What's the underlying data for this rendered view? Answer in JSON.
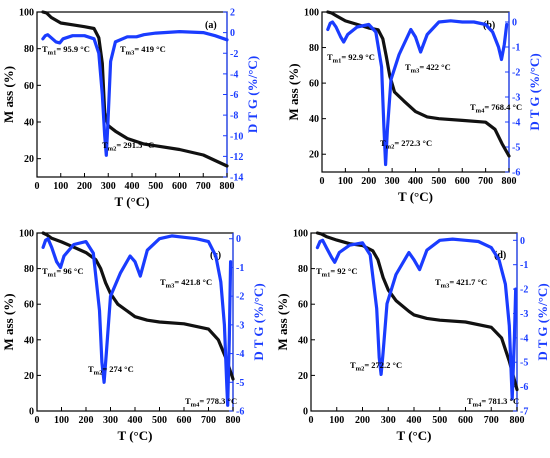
{
  "colors": {
    "mass": "#111111",
    "dtg": "#1a3cff",
    "axis_right": "#1a3cff"
  },
  "chart_data": [
    {
      "type": "line",
      "panel_label": "(a)",
      "xlabel": "T (°C)",
      "ylabel": "M ass (%)",
      "y2label": "D T G (%/°C)",
      "xlim": [
        0,
        800
      ],
      "ylim": [
        10,
        100
      ],
      "y2lim": [
        -14,
        2
      ],
      "xticks": [
        0,
        100,
        200,
        300,
        400,
        500,
        600,
        700,
        800
      ],
      "yticks": [
        20,
        40,
        60,
        80,
        100
      ],
      "y2ticks": [
        -14,
        -12,
        -10,
        -8,
        -6,
        -4,
        -2,
        0,
        2
      ],
      "series": [
        {
          "axis": "left",
          "x": [
            25,
            40,
            60,
            100,
            150,
            200,
            240,
            260,
            275,
            285,
            300,
            330,
            380,
            450,
            500,
            600,
            700,
            750,
            800
          ],
          "y": [
            100,
            99.5,
            97,
            94,
            93,
            92,
            91,
            86,
            72,
            45,
            38,
            35,
            31,
            28,
            27,
            25,
            22,
            19,
            16
          ]
        },
        {
          "axis": "right",
          "x": [
            25,
            35,
            45,
            60,
            80,
            96,
            110,
            150,
            200,
            240,
            260,
            275,
            285,
            292,
            298,
            310,
            330,
            380,
            419,
            450,
            500,
            600,
            700,
            750,
            800
          ],
          "y": [
            -0.6,
            -0.3,
            -0.2,
            -0.5,
            -0.9,
            -1.0,
            -0.6,
            -0.3,
            -0.3,
            -0.6,
            -2.0,
            -6.0,
            -10.0,
            -11.9,
            -9.0,
            -2.8,
            -0.9,
            -0.4,
            -0.4,
            -0.2,
            -0.05,
            0.1,
            0.0,
            -0.3,
            -0.7
          ]
        }
      ],
      "annotations": [
        "T",
        "m1",
        "= 95.9 °C",
        "T",
        "m3",
        "= 419 °C",
        "T",
        "m2",
        "= 291.5 °C"
      ]
    },
    {
      "type": "line",
      "panel_label": "(b)",
      "xlabel": "T (°C)",
      "ylabel": "M ass (%)",
      "y2label": "D T G (%/°C)",
      "xlim": [
        0,
        800
      ],
      "ylim": [
        10,
        100
      ],
      "y2lim": [
        -6,
        0.4
      ],
      "xticks": [
        0,
        100,
        200,
        300,
        400,
        500,
        600,
        700,
        800
      ],
      "yticks": [
        20,
        40,
        60,
        80,
        100
      ],
      "y2ticks": [
        -6,
        -5,
        -4,
        -3,
        -2,
        -1,
        0
      ],
      "series": [
        {
          "axis": "left",
          "x": [
            25,
            40,
            60,
            100,
            150,
            200,
            240,
            260,
            275,
            290,
            310,
            350,
            400,
            450,
            500,
            600,
            700,
            740,
            770,
            800
          ],
          "y": [
            100,
            99.5,
            98,
            95,
            93,
            91,
            90,
            85,
            75,
            64,
            55,
            50,
            44,
            41,
            40,
            39,
            38,
            34,
            26,
            19
          ]
        },
        {
          "axis": "right",
          "x": [
            25,
            35,
            45,
            60,
            80,
            93,
            110,
            150,
            200,
            230,
            255,
            265,
            272,
            280,
            295,
            330,
            380,
            400,
            422,
            450,
            500,
            550,
            600,
            650,
            700,
            730,
            755,
            768,
            780,
            790
          ],
          "y": [
            -0.3,
            -0.05,
            0.0,
            -0.2,
            -0.6,
            -0.8,
            -0.5,
            -0.2,
            -0.1,
            -0.4,
            -1.8,
            -4.2,
            -5.7,
            -4.3,
            -2.3,
            -1.3,
            -0.3,
            -0.6,
            -1.2,
            -0.5,
            0.0,
            0.05,
            0.0,
            0.0,
            -0.1,
            -0.4,
            -1.0,
            -1.5,
            -0.9,
            -0.1
          ]
        }
      ],
      "annotations": [
        "T",
        "m1",
        "= 92.9 °C",
        "T",
        "m3",
        "= 422 °C",
        "T",
        "m4",
        "= 768.4 °C",
        "T",
        "m2",
        "= 272.3 °C"
      ]
    },
    {
      "type": "line",
      "panel_label": "(c)",
      "xlabel": "T (°C)",
      "ylabel": "M ass (%)",
      "y2label": "D T G (%/°C)",
      "xlim": [
        0,
        800
      ],
      "ylim": [
        0,
        100
      ],
      "y2lim": [
        -6,
        0.2
      ],
      "xticks": [
        0,
        100,
        200,
        300,
        400,
        500,
        600,
        700,
        800
      ],
      "yticks": [
        0,
        20,
        40,
        60,
        80,
        100
      ],
      "y2ticks": [
        -6,
        -5,
        -4,
        -3,
        -2,
        -1,
        0
      ],
      "series": [
        {
          "axis": "left",
          "x": [
            25,
            40,
            60,
            100,
            150,
            200,
            240,
            260,
            280,
            300,
            330,
            380,
            400,
            450,
            500,
            600,
            700,
            740,
            770,
            800
          ],
          "y": [
            100,
            99,
            97,
            95,
            92,
            89,
            85,
            80,
            72,
            66,
            60,
            55,
            53,
            51,
            50,
            49,
            46,
            40,
            30,
            18
          ]
        },
        {
          "axis": "right",
          "x": [
            25,
            35,
            45,
            60,
            80,
            96,
            110,
            150,
            200,
            230,
            255,
            265,
            274,
            283,
            300,
            340,
            380,
            400,
            421.8,
            450,
            500,
            550,
            600,
            650,
            700,
            730,
            750,
            765,
            775,
            778.3,
            785,
            790
          ],
          "y": [
            -0.3,
            -0.05,
            0.0,
            -0.3,
            -0.8,
            -1.0,
            -0.6,
            -0.2,
            -0.1,
            -0.5,
            -2.5,
            -4.3,
            -5.0,
            -4.0,
            -2.0,
            -1.2,
            -0.6,
            -0.8,
            -1.3,
            -0.4,
            0.0,
            0.1,
            0.05,
            0.0,
            -0.1,
            -0.6,
            -1.5,
            -3.0,
            -5.2,
            -5.8,
            -3.5,
            -0.8
          ]
        }
      ],
      "annotations": [
        "T",
        "m1",
        "= 96 °C",
        "T",
        "m3",
        "= 421.8 °C",
        "T",
        "m2",
        "= 274 °C",
        "T",
        "m4",
        "= 778.3 °C"
      ]
    },
    {
      "type": "line",
      "panel_label": "(d)",
      "xlabel": "T (°C)",
      "ylabel": "M ass (%)",
      "y2label": "D T G (%/°C)",
      "xlim": [
        0,
        800
      ],
      "ylim": [
        0,
        100
      ],
      "y2lim": [
        -7,
        0.3
      ],
      "xticks": [
        0,
        100,
        200,
        300,
        400,
        500,
        600,
        700,
        800
      ],
      "yticks": [
        0,
        20,
        40,
        60,
        80,
        100
      ],
      "y2ticks": [
        -7,
        -6,
        -5,
        -4,
        -3,
        -2,
        -1,
        0
      ],
      "series": [
        {
          "axis": "left",
          "x": [
            25,
            40,
            60,
            100,
            150,
            200,
            240,
            260,
            280,
            300,
            330,
            380,
            400,
            450,
            500,
            600,
            700,
            740,
            770,
            800
          ],
          "y": [
            100,
            99.5,
            98,
            96,
            94,
            93,
            90,
            85,
            75,
            68,
            62,
            56,
            54,
            52,
            51,
            50,
            47,
            41,
            28,
            12
          ]
        },
        {
          "axis": "right",
          "x": [
            25,
            35,
            45,
            60,
            80,
            92,
            110,
            150,
            200,
            230,
            255,
            265,
            272.2,
            280,
            295,
            330,
            380,
            400,
            421.7,
            450,
            500,
            550,
            600,
            650,
            700,
            730,
            755,
            770,
            781.3,
            790,
            795
          ],
          "y": [
            -0.3,
            -0.05,
            0.0,
            -0.3,
            -0.7,
            -0.9,
            -0.5,
            -0.2,
            -0.1,
            -0.6,
            -2.8,
            -4.8,
            -5.5,
            -4.6,
            -2.6,
            -1.4,
            -0.5,
            -0.8,
            -1.2,
            -0.4,
            0.0,
            0.05,
            0.0,
            -0.05,
            -0.3,
            -0.8,
            -1.8,
            -3.5,
            -6.5,
            -4.0,
            -2.0
          ]
        }
      ],
      "annotations": [
        "T",
        "m1",
        "= 92 °C",
        "T",
        "m3",
        "= 421.7 °C",
        "T",
        "m2",
        "= 272.2 °C",
        "T",
        "m4",
        "= 781.3 °C"
      ]
    }
  ]
}
